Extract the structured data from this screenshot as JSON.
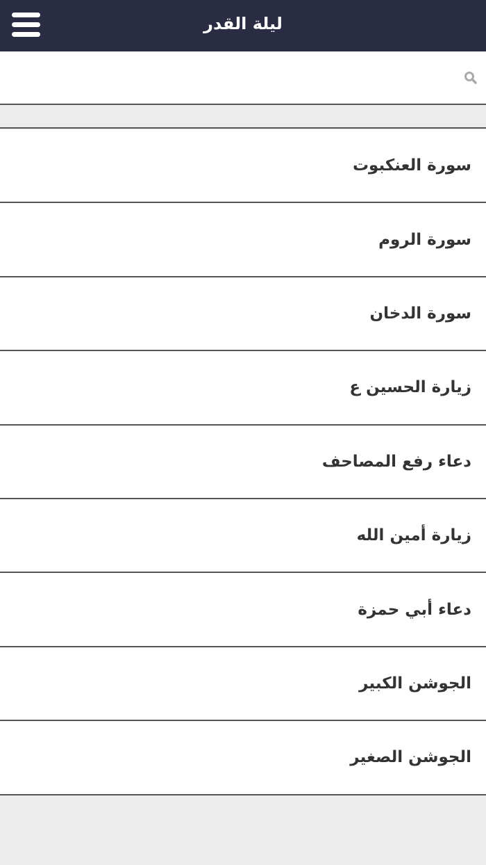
{
  "header": {
    "title": "ليلة القدر",
    "menu_icon": "hamburger-icon"
  },
  "search": {
    "placeholder": "",
    "value": "",
    "icon": "search-icon"
  },
  "items": [
    {
      "label": "سورة العنكبوت"
    },
    {
      "label": "سورة الروم"
    },
    {
      "label": "سورة الدخان"
    },
    {
      "label": "زيارة الحسين ع"
    },
    {
      "label": "دعاء رفع المصاحف"
    },
    {
      "label": "زيارة أمين الله"
    },
    {
      "label": "دعاء أبي حمزة"
    },
    {
      "label": "الجوشن الكبير"
    },
    {
      "label": "الجوشن الصغير"
    }
  ]
}
